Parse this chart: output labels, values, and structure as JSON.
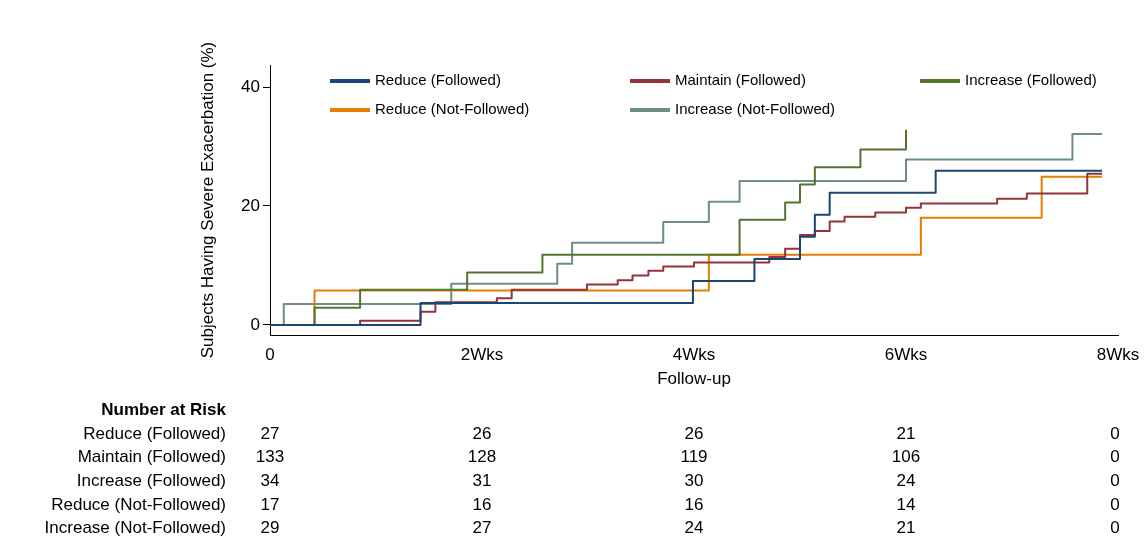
{
  "chart_data": {
    "type": "step",
    "xlabel": "Follow-up",
    "ylabel": "Subjects Having Severe Exacerbation (%)",
    "xlim": [
      0,
      8
    ],
    "xticks": [
      0,
      {
        "value": 2,
        "label": "2Wks"
      },
      {
        "value": 4,
        "label": "4Wks"
      },
      {
        "value": 6,
        "label": "6Wks"
      },
      {
        "value": 8,
        "label": "8Wks"
      }
    ],
    "ylim": [
      -1.7,
      43.7
    ],
    "yticks": [
      0,
      20,
      40
    ],
    "grid": false,
    "legend": "top",
    "marker": "none",
    "line_style": "solid",
    "series": [
      {
        "name": "Reduce (Followed)",
        "color": "#1a476f",
        "x": [
          0,
          1.42,
          3.99,
          4.57,
          5.0,
          5.14,
          5.28,
          6.28,
          7.85
        ],
        "values": [
          0,
          3.7,
          7.4,
          11.1,
          14.8,
          18.5,
          22.2,
          25.9,
          25.9
        ]
      },
      {
        "name": "Maintain (Followed)",
        "color": "#90353b",
        "x": [
          0,
          0.85,
          1.42,
          1.56,
          2.14,
          2.28,
          2.99,
          3.28,
          3.42,
          3.57,
          3.71,
          4.0,
          4.71,
          4.86,
          5.0,
          5.14,
          5.28,
          5.42,
          5.71,
          6.0,
          6.14,
          6.86,
          7.14,
          7.71,
          7.85
        ],
        "values": [
          0,
          0.7,
          2.2,
          3.8,
          4.5,
          5.9,
          6.8,
          7.5,
          8.3,
          9.1,
          9.8,
          10.5,
          11.4,
          12.8,
          15.1,
          15.8,
          17.4,
          18.2,
          18.9,
          19.7,
          20.4,
          21.2,
          22.1,
          25.4,
          25.4
        ]
      },
      {
        "name": "Increase (Followed)",
        "color": "#55752f",
        "x": [
          0,
          0.42,
          0.85,
          1.86,
          2.57,
          4.43,
          4.86,
          5.0,
          5.14,
          5.57,
          6.0
        ],
        "values": [
          0,
          2.9,
          5.9,
          8.8,
          11.8,
          17.7,
          20.6,
          23.6,
          26.5,
          29.5,
          32.8
        ]
      },
      {
        "name": "Reduce (Not-Followed)",
        "color": "#e37e00",
        "x": [
          0,
          0.42,
          4.14,
          6.14,
          7.28,
          7.85
        ],
        "values": [
          0,
          5.8,
          11.8,
          18.0,
          24.9,
          24.9
        ]
      },
      {
        "name": "Increase (Not-Followed)",
        "color": "#6e8e84",
        "x": [
          0,
          0.13,
          1.71,
          2.71,
          2.85,
          3.71,
          4.14,
          4.43,
          6.0,
          7.57,
          7.85
        ],
        "values": [
          0,
          3.5,
          6.9,
          10.3,
          13.8,
          17.3,
          20.7,
          24.2,
          27.8,
          32.1,
          32.1
        ]
      }
    ],
    "annotations": [
      "Number at Risk",
      "Reduce (Followed)",
      "27",
      "26",
      "26",
      "21",
      "0",
      "Maintain (Followed)",
      "133",
      "128",
      "119",
      "106",
      "0",
      "Increase (Followed)",
      "34",
      "31",
      "30",
      "24",
      "0",
      "Reduce (Not-Followed)",
      "17",
      "16",
      "16",
      "14",
      "0",
      "Increase (Not-Followed)",
      "29",
      "27",
      "24",
      "21",
      "0"
    ]
  }
}
